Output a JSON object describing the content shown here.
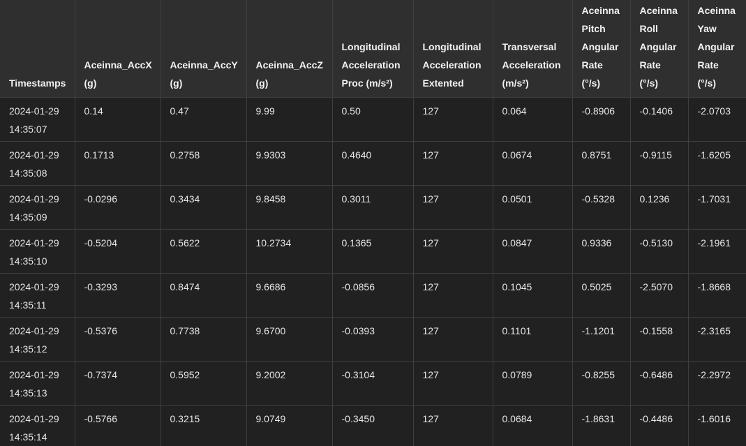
{
  "columns": [
    {
      "lines": [
        "Timestamps"
      ]
    },
    {
      "lines": [
        "Aceinna_AccX",
        "(g)"
      ]
    },
    {
      "lines": [
        "Aceinna_AccY",
        "(g)"
      ]
    },
    {
      "lines": [
        "Aceinna_AccZ",
        "(g)"
      ]
    },
    {
      "lines": [
        "Longitudinal",
        "Acceleration",
        "Proc (m/s²)"
      ]
    },
    {
      "lines": [
        "Longitudinal",
        "Acceleration",
        "Extented"
      ]
    },
    {
      "lines": [
        "Transversal",
        "Acceleration",
        "(m/s²)"
      ]
    },
    {
      "lines": [
        "Aceinna",
        "Pitch",
        "Angular",
        "Rate",
        "(°/s)"
      ]
    },
    {
      "lines": [
        "Aceinna",
        "Roll",
        "Angular",
        "Rate",
        "(°/s)"
      ]
    },
    {
      "lines": [
        "Aceinna",
        "Yaw",
        "Angular",
        "Rate",
        "(°/s)"
      ]
    }
  ],
  "rows": [
    {
      "date": "2024-01-29",
      "time": "14:35:07",
      "cells": [
        "0.14",
        "0.47",
        "9.99",
        "0.50",
        "127",
        "0.064",
        "-0.8906",
        "-0.1406",
        "-2.0703"
      ]
    },
    {
      "date": "2024-01-29",
      "time": "14:35:08",
      "cells": [
        "0.1713",
        "0.2758",
        "9.9303",
        "0.4640",
        "127",
        "0.0674",
        "0.8751",
        "-0.9115",
        "-1.6205"
      ]
    },
    {
      "date": "2024-01-29",
      "time": "14:35:09",
      "cells": [
        "-0.0296",
        "0.3434",
        "9.8458",
        "0.3011",
        "127",
        "0.0501",
        "-0.5328",
        "0.1236",
        "-1.7031"
      ]
    },
    {
      "date": "2024-01-29",
      "time": "14:35:10",
      "cells": [
        "-0.5204",
        "0.5622",
        "10.2734",
        "0.1365",
        "127",
        "0.0847",
        "0.9336",
        "-0.5130",
        "-2.1961"
      ]
    },
    {
      "date": "2024-01-29",
      "time": "14:35:11",
      "cells": [
        "-0.3293",
        "0.8474",
        "9.6686",
        "-0.0856",
        "127",
        "0.1045",
        "0.5025",
        "-2.5070",
        "-1.8668"
      ]
    },
    {
      "date": "2024-01-29",
      "time": "14:35:12",
      "cells": [
        "-0.5376",
        "0.7738",
        "9.6700",
        "-0.0393",
        "127",
        "0.1101",
        "-1.1201",
        "-0.1558",
        "-2.3165"
      ]
    },
    {
      "date": "2024-01-29",
      "time": "14:35:13",
      "cells": [
        "-0.7374",
        "0.5952",
        "9.2002",
        "-0.3104",
        "127",
        "0.0789",
        "-0.8255",
        "-0.6486",
        "-2.2972"
      ]
    },
    {
      "date": "2024-01-29",
      "time": "14:35:14",
      "cells": [
        "-0.5766",
        "0.3215",
        "9.0749",
        "-0.3450",
        "127",
        "0.0684",
        "-1.8631",
        "-0.4486",
        "-1.6016"
      ]
    }
  ]
}
